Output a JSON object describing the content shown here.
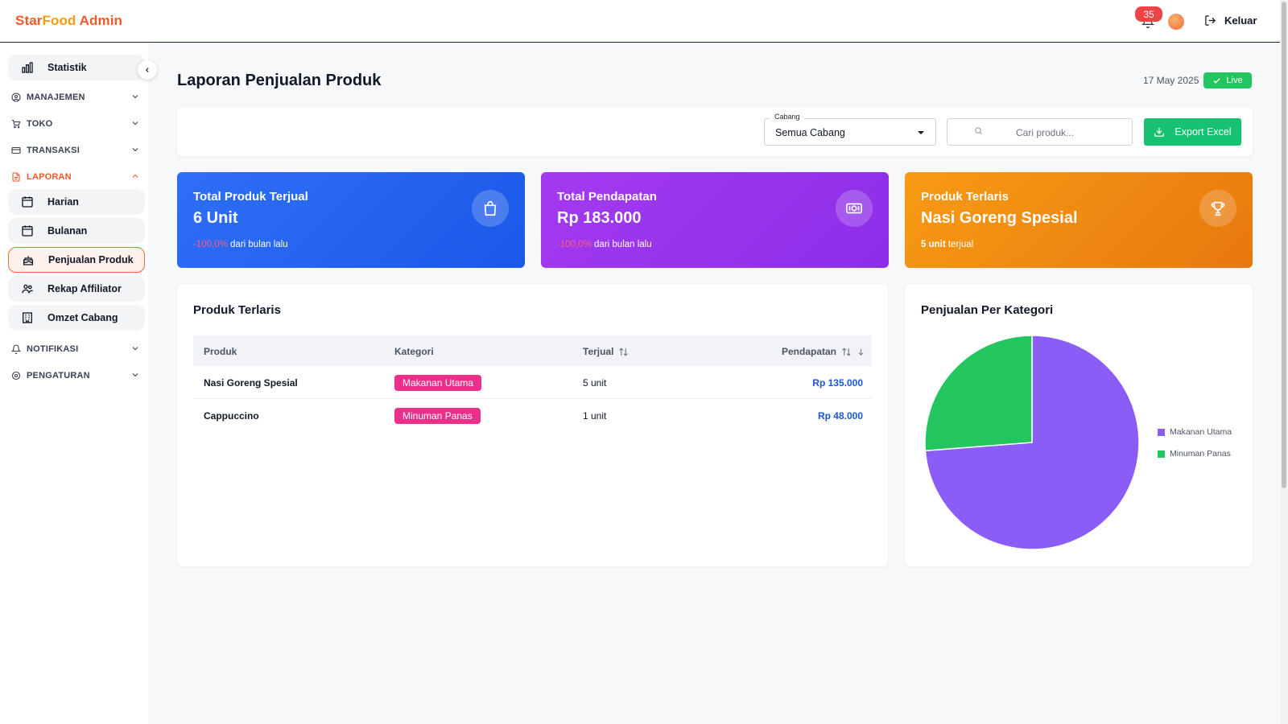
{
  "header": {
    "brand_part1": "Star",
    "brand_part2": "Food",
    "brand_part3": " Admin",
    "notification_count": "35",
    "logout_label": "Keluar"
  },
  "sidebar": {
    "items": [
      {
        "label": "Statistik",
        "icon": "bar-chart-icon"
      },
      {
        "label": "MANAJEMEN",
        "icon": "user-circle-icon"
      },
      {
        "label": "TOKO",
        "icon": "cart-icon"
      },
      {
        "label": "TRANSAKSI",
        "icon": "credit-card-icon"
      },
      {
        "label": "LAPORAN",
        "icon": "document-icon"
      },
      {
        "label": "Harian",
        "icon": "calendar-icon"
      },
      {
        "label": "Bulanan",
        "icon": "calendar-icon"
      },
      {
        "label": "Penjualan Produk",
        "icon": "cake-icon"
      },
      {
        "label": "Rekap Affiliator",
        "icon": "users-icon"
      },
      {
        "label": "Omzet Cabang",
        "icon": "building-icon"
      },
      {
        "label": "NOTIFIKASI",
        "icon": "bell-icon"
      },
      {
        "label": "PENGATURAN",
        "icon": "gear-icon"
      }
    ]
  },
  "page": {
    "title": "Laporan Penjualan Produk",
    "date": "17 May 2025",
    "live_label": "Live"
  },
  "filters": {
    "branch_label": "Cabang",
    "branch_value": "Semua Cabang",
    "search_placeholder": "Cari produk...",
    "export_label": "Export Excel"
  },
  "stats": {
    "total_sold": {
      "title": "Total Produk Terjual",
      "value": "6 Unit",
      "change": "-100,0%",
      "change_suffix": " dari bulan lalu"
    },
    "revenue": {
      "title": "Total Pendapatan",
      "value": "Rp 183.000",
      "change": "-100,0%",
      "change_suffix": " dari bulan lalu"
    },
    "best_seller": {
      "title": "Produk Terlaris",
      "value": "Nasi Goreng Spesial",
      "sub_bold": "5 unit",
      "sub_rest": " terjual"
    }
  },
  "top_products": {
    "title": "Produk Terlaris",
    "columns": [
      "Produk",
      "Kategori",
      "Terjual",
      "Pendapatan"
    ],
    "rows": [
      {
        "product": "Nasi Goreng Spesial",
        "category": "Makanan Utama",
        "sold": "5 unit",
        "revenue": "Rp 135.000"
      },
      {
        "product": "Cappuccino",
        "category": "Minuman Panas",
        "sold": "1 unit",
        "revenue": "Rp 48.000"
      }
    ]
  },
  "category_chart": {
    "title": "Penjualan Per Kategori"
  },
  "chart_data": {
    "type": "pie",
    "categories": [
      "Makanan Utama",
      "Minuman Panas"
    ],
    "values": [
      135000,
      48000
    ],
    "colors": [
      "#8b5cf6",
      "#22c55e"
    ],
    "legend": "right"
  }
}
